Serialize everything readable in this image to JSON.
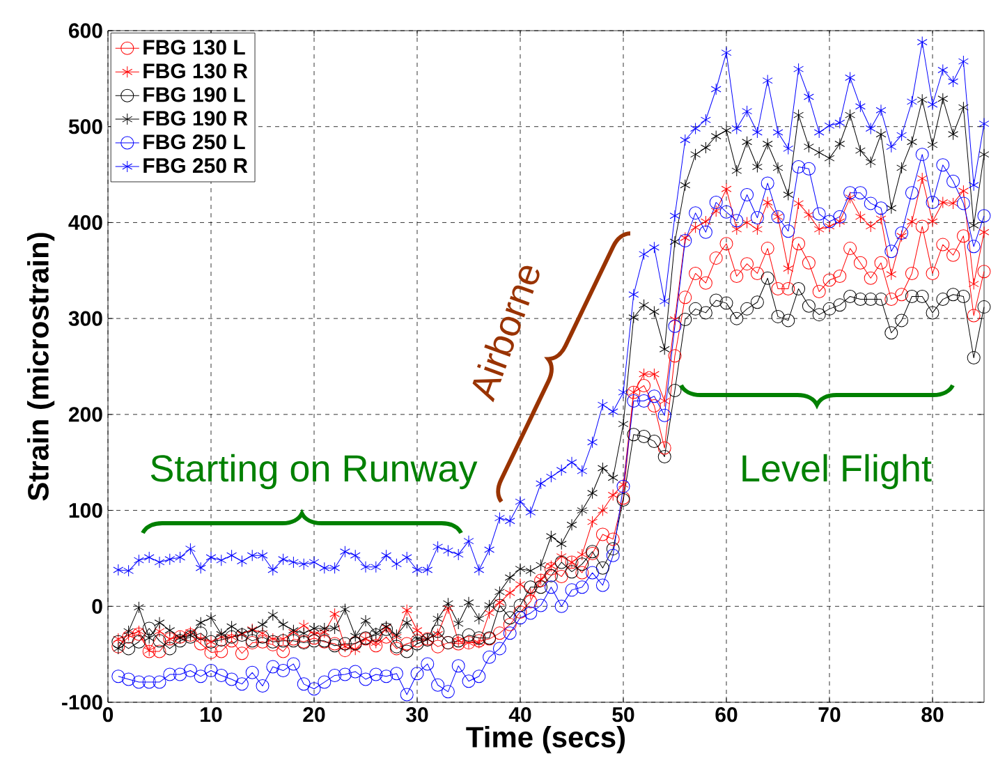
{
  "chart_data": {
    "type": "line",
    "xlabel": "Time (secs)",
    "ylabel": "Strain (microstrain)",
    "x": [
      1,
      2,
      3,
      4,
      5,
      6,
      7,
      8,
      9,
      10,
      11,
      12,
      13,
      14,
      15,
      16,
      17,
      18,
      19,
      20,
      21,
      22,
      23,
      24,
      25,
      26,
      27,
      28,
      29,
      30,
      31,
      32,
      33,
      34,
      35,
      36,
      37,
      38,
      39,
      40,
      41,
      42,
      43,
      44,
      45,
      46,
      47,
      48,
      49,
      50,
      51,
      52,
      53,
      54,
      55,
      56,
      57,
      58,
      59,
      60,
      61,
      62,
      63,
      64,
      65,
      66,
      67,
      68,
      69,
      70,
      71,
      72,
      73,
      74,
      75,
      76,
      77,
      78,
      79,
      80,
      81,
      82,
      83,
      84,
      85
    ],
    "xlim": [
      0,
      85
    ],
    "xticks": [
      0,
      10,
      20,
      30,
      40,
      50,
      60,
      70,
      80
    ],
    "ylim": [
      -100,
      600
    ],
    "yticks": [
      -100,
      0,
      100,
      200,
      300,
      400,
      500,
      600
    ],
    "grid": true,
    "legend": "top left",
    "line_style": "solid",
    "series": [
      {
        "name": "FBG 130 L",
        "color": "#ff0000",
        "marker": "circle",
        "values": [
          -42,
          -32,
          -29,
          -47,
          -47,
          -34,
          -32,
          -30,
          -39,
          -48,
          -47,
          -36,
          -49,
          -38,
          -37,
          -40,
          -47,
          -34,
          -37,
          -33,
          -37,
          -39,
          -46,
          -38,
          -34,
          -41,
          -32,
          -44,
          -39,
          -36,
          -34,
          -42,
          -38,
          -39,
          -38,
          -36,
          -34,
          -28,
          -19,
          -6,
          5,
          27,
          39,
          31,
          46,
          35,
          55,
          75,
          70,
          113,
          223,
          230,
          209,
          165,
          261,
          322,
          347,
          337,
          363,
          378,
          344,
          357,
          347,
          373,
          331,
          331,
          378,
          358,
          328,
          340,
          344,
          373,
          358,
          342,
          358,
          320,
          325,
          347,
          396,
          347,
          377,
          366,
          386,
          303,
          349
        ]
      },
      {
        "name": "FBG 130 R",
        "color": "#ff0000",
        "marker": "cross",
        "values": [
          -34,
          -30,
          -26,
          -46,
          -26,
          -34,
          -32,
          -27,
          -34,
          -37,
          -32,
          -32,
          -29,
          -24,
          -28,
          -34,
          -34,
          -27,
          -20,
          -29,
          -27,
          -8,
          -42,
          -45,
          -34,
          -38,
          -22,
          -32,
          -4,
          -25,
          -34,
          -29,
          -2,
          -36,
          -38,
          -38,
          -7,
          4,
          14,
          23,
          13,
          28,
          42,
          52,
          46,
          54,
          88,
          100,
          116,
          127,
          223,
          242,
          242,
          214,
          299,
          384,
          395,
          401,
          412,
          435,
          393,
          400,
          393,
          421,
          406,
          352,
          420,
          408,
          393,
          396,
          401,
          426,
          406,
          396,
          404,
          346,
          386,
          401,
          446,
          401,
          421,
          420,
          433,
          336,
          390
        ]
      },
      {
        "name": "FBG 190 L",
        "color": "#000000",
        "marker": "circle",
        "values": [
          -37,
          -44,
          -37,
          -23,
          -36,
          -44,
          -36,
          -32,
          -28,
          -37,
          -35,
          -32,
          -30,
          -36,
          -32,
          -37,
          -36,
          -36,
          -38,
          -36,
          -36,
          -41,
          -39,
          -39,
          -33,
          -30,
          -24,
          -42,
          -47,
          -39,
          -35,
          -26,
          -38,
          -36,
          -30,
          -33,
          -33,
          1,
          -12,
          1,
          20,
          20,
          32,
          46,
          36,
          44,
          57,
          40,
          60,
          111,
          179,
          177,
          172,
          156,
          225,
          299,
          310,
          306,
          319,
          316,
          300,
          310,
          317,
          342,
          302,
          298,
          331,
          313,
          304,
          310,
          314,
          323,
          320,
          320,
          320,
          285,
          298,
          323,
          323,
          306,
          320,
          325,
          323,
          259,
          312
        ]
      },
      {
        "name": "FBG 190 R",
        "color": "#000000",
        "marker": "cross",
        "values": [
          -44,
          -26,
          -1,
          -33,
          -17,
          -25,
          -33,
          -30,
          -17,
          -12,
          -29,
          -21,
          -28,
          -25,
          -19,
          -9,
          -19,
          -25,
          -28,
          -23,
          -23,
          -23,
          -3,
          -31,
          -15,
          -28,
          -21,
          -30,
          -17,
          -34,
          -34,
          -13,
          3,
          -18,
          4,
          -13,
          1,
          15,
          30,
          39,
          37,
          43,
          73,
          65,
          85,
          100,
          118,
          144,
          134,
          190,
          301,
          314,
          307,
          268,
          380,
          439,
          471,
          478,
          490,
          496,
          454,
          484,
          458,
          482,
          457,
          429,
          512,
          479,
          473,
          467,
          482,
          512,
          475,
          463,
          492,
          415,
          457,
          484,
          528,
          481,
          529,
          492,
          520,
          397,
          471
        ]
      },
      {
        "name": "FBG 250 L",
        "color": "#0000ff",
        "marker": "circle",
        "values": [
          -73,
          -76,
          -79,
          -79,
          -79,
          -71,
          -71,
          -67,
          -73,
          -67,
          -72,
          -76,
          -81,
          -69,
          -83,
          -63,
          -67,
          -60,
          -81,
          -86,
          -79,
          -72,
          -71,
          -68,
          -76,
          -71,
          -73,
          -70,
          -92,
          -70,
          -60,
          -82,
          -89,
          -62,
          -78,
          -73,
          -53,
          -44,
          -28,
          -12,
          -7,
          1,
          20,
          0,
          17,
          20,
          35,
          22,
          53,
          125,
          214,
          214,
          219,
          199,
          292,
          381,
          410,
          390,
          421,
          411,
          402,
          429,
          405,
          441,
          406,
          391,
          458,
          456,
          409,
          401,
          406,
          431,
          431,
          420,
          415,
          370,
          389,
          431,
          471,
          421,
          460,
          443,
          420,
          375,
          407
        ]
      },
      {
        "name": "FBG 250 R",
        "color": "#0000ff",
        "marker": "cross",
        "values": [
          38,
          37,
          48,
          51,
          46,
          49,
          51,
          60,
          40,
          51,
          48,
          53,
          47,
          53,
          53,
          38,
          49,
          46,
          44,
          46,
          40,
          40,
          57,
          53,
          41,
          41,
          53,
          44,
          51,
          38,
          38,
          62,
          58,
          54,
          68,
          38,
          59,
          92,
          89,
          109,
          98,
          128,
          135,
          142,
          150,
          141,
          171,
          210,
          203,
          223,
          325,
          367,
          374,
          318,
          407,
          486,
          498,
          507,
          539,
          577,
          498,
          516,
          494,
          548,
          494,
          477,
          560,
          531,
          494,
          501,
          504,
          551,
          521,
          498,
          517,
          479,
          491,
          526,
          588,
          523,
          559,
          547,
          568,
          439,
          503
        ]
      }
    ],
    "annotations": [
      "Starting on Runway",
      "Airborne",
      "Level Flight"
    ]
  }
}
